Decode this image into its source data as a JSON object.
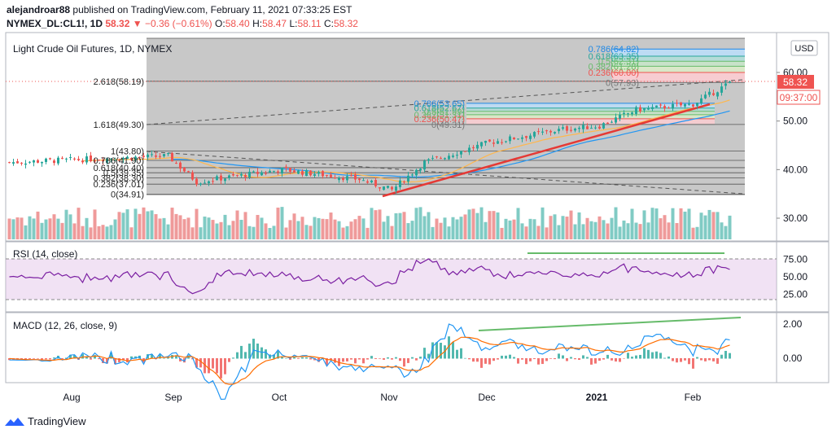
{
  "header": {
    "publisher": "alejandroar88",
    "published_text": "published on TradingView.com, February 11, 2021 07:33:25 EST",
    "symbol": "NYMEX_DL:CL1!, 1D",
    "price": "58.32",
    "change": "▼ −0.36 (−0.61%)",
    "o_label": "O:",
    "o_value": "58.40",
    "h_label": "H:",
    "h_value": "58.47",
    "l_label": "L:",
    "l_value": "58.11",
    "c_label": "C:",
    "c_value": "58.32"
  },
  "chart_title": "Light Crude Oil Futures, 1D, NYMEX",
  "currency": "USD",
  "last_price_tag": "58.32",
  "countdown_tag": "09:37:00",
  "price_axis": [
    "60.00",
    "50.00",
    "40.00",
    "30.00"
  ],
  "x_axis": [
    "Aug",
    "Sep",
    "Oct",
    "Nov",
    "Dec",
    "2021",
    "Feb"
  ],
  "fib_big": [
    "2.618(58.19)",
    "1.618(49.30)",
    "1(43.80)",
    "0.786(41.90)",
    "0.618(40.40)",
    "0.5(39.35)",
    "0.382(38.30)",
    "0.236(37.01)",
    "0(34.91)"
  ],
  "fib_mid": [
    "0.786(53.65)",
    "0.618(52.67)",
    "0.5(51.99)",
    "0.382(51.31)",
    "0.236(50.47)",
    "0(49.31)"
  ],
  "fib_top": [
    "0.786(64.82)",
    "0.618(63.35)",
    "0.5(62.31)",
    "0.382(61.28)",
    "0.236(60.00)",
    "0(57.93)"
  ],
  "rsi": {
    "label": "RSI (14, close)",
    "axis": [
      "75.00",
      "50.00",
      "25.00"
    ]
  },
  "macd": {
    "label": "MACD (12, 26, close, 9)",
    "axis": [
      "2.00",
      "0.00"
    ]
  },
  "footer": {
    "brand": "TradingView"
  },
  "colors": {
    "up": "#26a69a",
    "down": "#ef5350",
    "rsi": "#7b1fa2",
    "macd": "#2196f3",
    "signal": "#ff6d00",
    "fib_zone": "#c8c8c8",
    "trend": "#e53935"
  },
  "chart_data": {
    "type": "candlestick",
    "title": "Light Crude Oil Futures, 1D, NYMEX",
    "y_range": [
      25,
      66
    ],
    "approx_path": [
      {
        "x": "Aug",
        "close": 41.5
      },
      {
        "x": "Sep",
        "close": 42.8
      },
      {
        "x": "Sep",
        "close": 37.5
      },
      {
        "x": "Oct",
        "close": 40.0
      },
      {
        "x": "Oct",
        "close": 38.0
      },
      {
        "x": "Nov",
        "close": 35.8
      },
      {
        "x": "Nov",
        "close": 41.5
      },
      {
        "x": "Dec",
        "close": 45.6
      },
      {
        "x": "Dec",
        "close": 48.3
      },
      {
        "x": "2021",
        "close": 49.0
      },
      {
        "x": "2021",
        "close": 52.3
      },
      {
        "x": "Feb",
        "close": 53.5
      },
      {
        "x": "Feb",
        "close": 58.32
      }
    ],
    "rsi_range": [
      0,
      100
    ],
    "macd_range": [
      -2.5,
      2.8
    ]
  }
}
